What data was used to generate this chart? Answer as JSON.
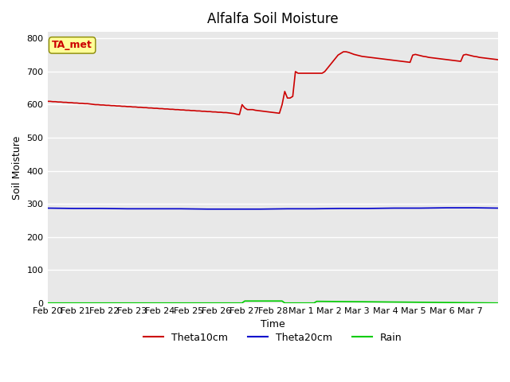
{
  "title": "Alfalfa Soil Moisture",
  "xlabel": "Time",
  "ylabel": "Soil Moisture",
  "bg_color": "#e8e8e8",
  "grid_color": "#ffffff",
  "ylim": [
    0,
    820
  ],
  "yticks": [
    0,
    100,
    200,
    300,
    400,
    500,
    600,
    700,
    800
  ],
  "annotation_label": "TA_met",
  "annotation_color": "#cc0000",
  "annotation_bg": "#ffff99",
  "legend_entries": [
    "Theta10cm",
    "Theta20cm",
    "Rain"
  ],
  "line_colors": [
    "#cc0000",
    "#0000cc",
    "#00cc00"
  ],
  "theta10_x": [
    0,
    1,
    2,
    3,
    4,
    5,
    6,
    7,
    8,
    9,
    10,
    11,
    12,
    13,
    14,
    15,
    16,
    17,
    18,
    19,
    20,
    21,
    22,
    23,
    24,
    25,
    26,
    27,
    28,
    29,
    30,
    31,
    32,
    33,
    34,
    35,
    36,
    37,
    38,
    39,
    40,
    41,
    42,
    43,
    44,
    45,
    46,
    47,
    48,
    49,
    50,
    51,
    52,
    53,
    54,
    55,
    56,
    57,
    58,
    59,
    60,
    61,
    62,
    63,
    64,
    65,
    66,
    67,
    68,
    69,
    70,
    71,
    72,
    73,
    74,
    75,
    76,
    77,
    78,
    79,
    80,
    81,
    82,
    83,
    84,
    85,
    86,
    87,
    88,
    89,
    90,
    91,
    92,
    93,
    94,
    95,
    96,
    97,
    98,
    99,
    100,
    101,
    102,
    103,
    104,
    105,
    106,
    107,
    108,
    109,
    110,
    111,
    112,
    113,
    114,
    115,
    116,
    117,
    118,
    119,
    120,
    121,
    122,
    123,
    124,
    125,
    126,
    127,
    128,
    129,
    130,
    131,
    132,
    133,
    134,
    135,
    136,
    137,
    138,
    139,
    140,
    141,
    142,
    143,
    144,
    145,
    146,
    147,
    148,
    149,
    150,
    151,
    152,
    153,
    154,
    155,
    156,
    157,
    158,
    159,
    160,
    161,
    162,
    163,
    164,
    165,
    166,
    167,
    168,
    169
  ],
  "theta10_y": [
    610,
    610,
    609,
    609,
    608,
    608,
    607,
    607,
    606,
    606,
    605,
    605,
    604,
    604,
    603,
    603,
    602,
    601,
    600,
    600,
    599,
    599,
    598,
    598,
    597,
    597,
    596,
    596,
    595,
    595,
    594,
    594,
    593,
    593,
    592,
    592,
    591,
    591,
    590,
    590,
    589,
    589,
    588,
    588,
    587,
    587,
    586,
    586,
    585,
    585,
    584,
    584,
    583,
    583,
    582,
    582,
    581,
    581,
    580,
    580,
    579,
    579,
    578,
    578,
    577,
    577,
    576,
    576,
    575,
    574,
    573,
    571,
    570,
    600,
    590,
    585,
    585,
    585,
    583,
    582,
    581,
    580,
    579,
    578,
    577,
    576,
    575,
    574,
    600,
    640,
    620,
    620,
    625,
    700,
    695,
    695,
    695,
    695,
    695,
    695,
    695,
    695,
    695,
    695,
    700,
    710,
    720,
    730,
    740,
    750,
    755,
    760,
    760,
    758,
    755,
    752,
    750,
    748,
    746,
    745,
    744,
    743,
    742,
    741,
    740,
    739,
    738,
    737,
    736,
    735,
    734,
    733,
    732,
    731,
    730,
    729,
    728,
    750,
    752,
    750,
    748,
    746,
    745,
    743,
    742,
    741,
    740,
    739,
    738,
    737,
    736,
    735,
    734,
    733,
    732,
    731,
    750,
    752,
    750,
    748,
    746,
    745,
    743,
    742,
    741,
    740,
    739,
    738,
    737,
    736
  ],
  "theta20_x": [
    0,
    10,
    20,
    30,
    40,
    50,
    60,
    70,
    80,
    90,
    100,
    110,
    120,
    130,
    140,
    150,
    160,
    169
  ],
  "theta20_y": [
    287,
    286,
    286,
    285,
    285,
    285,
    284,
    284,
    284,
    285,
    285,
    286,
    286,
    287,
    287,
    288,
    288,
    287
  ],
  "rain_x": [
    0,
    73,
    74,
    88,
    89,
    100,
    101,
    169
  ],
  "rain_y": [
    0,
    0,
    6,
    6,
    0,
    0,
    5,
    0
  ],
  "x_tick_labels": [
    "Feb 20",
    "Feb 21",
    "Feb 22",
    "Feb 23",
    "Feb 24",
    "Feb 25",
    "Feb 26",
    "Feb 27",
    "Feb 28",
    "Mar 1",
    "Mar 2",
    "Mar 3",
    "Mar 4",
    "Mar 5",
    "Mar 6",
    "Mar 7"
  ],
  "x_tick_positions": [
    0,
    10.5625,
    21.125,
    31.6875,
    42.25,
    52.8125,
    63.375,
    73.9375,
    84.5,
    95.0625,
    105.625,
    116.1875,
    126.75,
    137.3125,
    147.875,
    158.4375
  ]
}
